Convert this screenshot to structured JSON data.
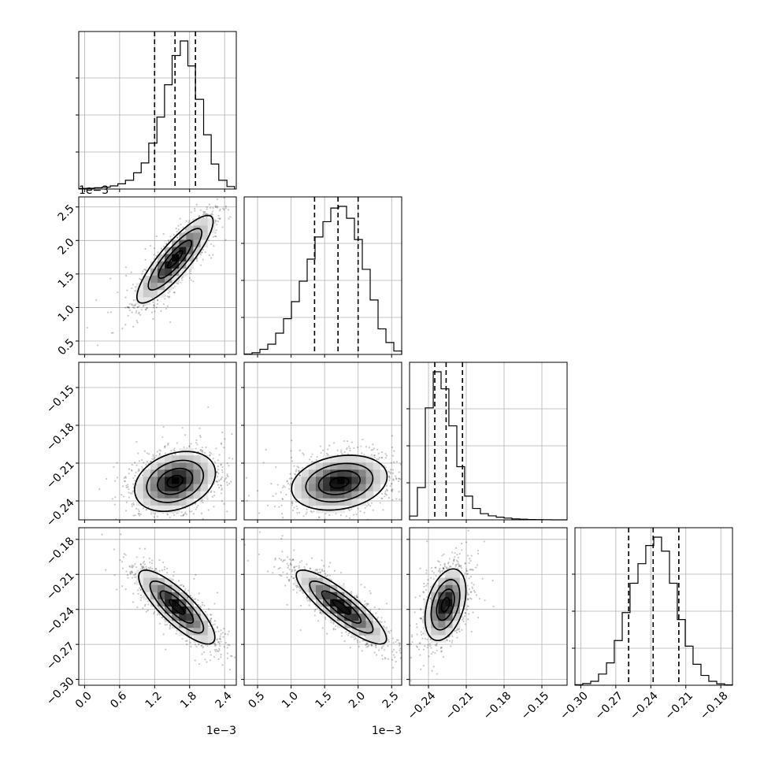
{
  "chart_data": {
    "type": "corner",
    "title": "",
    "parameters": [
      {
        "range": [
          -0.0001,
          0.0026
        ],
        "axis_offset_label": "1e−3",
        "ticks": [
          {
            "value": 0.0,
            "label": "0.0"
          },
          {
            "value": 0.0006,
            "label": "0.6"
          },
          {
            "value": 0.0012,
            "label": "1.2"
          },
          {
            "value": 0.0018,
            "label": "1.8"
          },
          {
            "value": 0.0024,
            "label": "2.4"
          }
        ],
        "histogram": {
          "bin_edges": [
            -0.0001,
            4e-05,
            0.00017,
            0.0003,
            0.00044,
            0.00057,
            0.0007,
            0.00084,
            0.00097,
            0.0011,
            0.00124,
            0.00137,
            0.0015,
            0.00164,
            0.00177,
            0.0019,
            0.00204,
            0.00217,
            0.0023,
            0.00244,
            0.00257
          ],
          "counts": [
            3,
            4,
            6,
            9,
            15,
            25,
            42,
            78,
            125,
            220,
            345,
            500,
            640,
            710,
            590,
            430,
            260,
            120,
            42,
            12
          ]
        },
        "quantiles": [
          0.0012,
          0.00155,
          0.0019
        ]
      },
      {
        "range": [
          0.3,
          2.65
        ],
        "axis_offset_label": "1e−3",
        "ticks": [
          {
            "value": 0.5,
            "label": "0.5"
          },
          {
            "value": 1.0,
            "label": "1.0"
          },
          {
            "value": 1.5,
            "label": "1.5"
          },
          {
            "value": 2.0,
            "label": "2.0"
          },
          {
            "value": 2.5,
            "label": "2.5"
          }
        ],
        "histogram": {
          "bin_edges": [
            0.3,
            0.4175,
            0.535,
            0.6525,
            0.77,
            0.8875,
            1.005,
            1.1225,
            1.24,
            1.3575,
            1.475,
            1.5925,
            1.71,
            1.8275,
            1.945,
            2.0625,
            2.18,
            2.2975,
            2.415,
            2.5325,
            2.65
          ],
          "counts": [
            5,
            20,
            60,
            120,
            250,
            420,
            620,
            860,
            1120,
            1380,
            1560,
            1720,
            1740,
            1600,
            1350,
            1000,
            640,
            300,
            140,
            40
          ]
        },
        "quantiles": [
          1.35,
          1.7,
          2.0
        ]
      },
      {
        "range": [
          -0.255,
          -0.13
        ],
        "ticks": [
          {
            "value": -0.24,
            "label": "−0.24"
          },
          {
            "value": -0.21,
            "label": "−0.21"
          },
          {
            "value": -0.18,
            "label": "−0.18"
          },
          {
            "value": -0.15,
            "label": "−0.15"
          }
        ],
        "histogram": {
          "bin_edges": [
            -0.255,
            -0.2488,
            -0.2425,
            -0.2362,
            -0.23,
            -0.2238,
            -0.2175,
            -0.2113,
            -0.205,
            -0.1988,
            -0.1925,
            -0.1862,
            -0.18,
            -0.1738,
            -0.1675,
            -0.1613,
            -0.155,
            -0.1488,
            -0.1425,
            -0.1363,
            -0.13
          ],
          "counts": [
            40,
            340,
            1180,
            1560,
            1380,
            990,
            560,
            250,
            120,
            65,
            42,
            28,
            18,
            10,
            6,
            3,
            2,
            1,
            0,
            0
          ]
        },
        "quantiles": [
          -0.235,
          -0.226,
          -0.213
        ]
      },
      {
        "range": [
          -0.305,
          -0.17
        ],
        "ticks": [
          {
            "value": -0.3,
            "label": "−0.30"
          },
          {
            "value": -0.27,
            "label": "−0.27"
          },
          {
            "value": -0.24,
            "label": "−0.24"
          },
          {
            "value": -0.21,
            "label": "−0.21"
          },
          {
            "value": -0.18,
            "label": "−0.18"
          }
        ],
        "histogram": {
          "bin_edges": [
            -0.305,
            -0.2983,
            -0.2915,
            -0.2848,
            -0.278,
            -0.2713,
            -0.2645,
            -0.2578,
            -0.251,
            -0.2443,
            -0.2375,
            -0.2308,
            -0.224,
            -0.2173,
            -0.2105,
            -0.2038,
            -0.197,
            -0.1903,
            -0.1835,
            -0.1768,
            -0.17
          ],
          "counts": [
            4,
            12,
            28,
            80,
            160,
            320,
            520,
            730,
            870,
            1000,
            1060,
            960,
            730,
            470,
            280,
            150,
            70,
            28,
            10,
            3
          ]
        },
        "quantiles": [
          -0.259,
          -0.238,
          -0.216
        ]
      }
    ],
    "pairs": [
      {
        "row": 1,
        "col": 0,
        "mean": [
          0.00155,
          1.72
        ],
        "std": [
          0.00033,
          0.33
        ],
        "rho": 0.86,
        "levels": [
          0.39,
          0.86,
          1.39,
          1.98
        ]
      },
      {
        "row": 2,
        "col": 0,
        "mean": [
          0.00155,
          -0.2245
        ],
        "std": [
          0.00035,
          0.012
        ],
        "rho": 0.28,
        "levels": [
          0.39,
          0.86,
          1.39,
          1.98
        ]
      },
      {
        "row": 2,
        "col": 1,
        "mean": [
          1.72,
          -0.2255
        ],
        "std": [
          0.36,
          0.011
        ],
        "rho": 0.22,
        "levels": [
          0.39,
          0.86,
          1.39,
          1.98
        ]
      },
      {
        "row": 3,
        "col": 0,
        "mean": [
          0.00158,
          -0.238
        ],
        "std": [
          0.00033,
          0.016
        ],
        "rho": -0.82,
        "levels": [
          0.39,
          0.86,
          1.39,
          1.98
        ]
      },
      {
        "row": 3,
        "col": 1,
        "mean": [
          1.75,
          -0.238
        ],
        "std": [
          0.34,
          0.016
        ],
        "rho": -0.86,
        "levels": [
          0.39,
          0.86,
          1.39,
          1.98
        ]
      },
      {
        "row": 3,
        "col": 2,
        "mean": [
          -0.2265,
          -0.236
        ],
        "std": [
          0.0082,
          0.0155
        ],
        "rho": 0.38,
        "levels": [
          0.39,
          0.86,
          1.39,
          1.98
        ]
      }
    ],
    "grid": true,
    "legend": "none"
  }
}
